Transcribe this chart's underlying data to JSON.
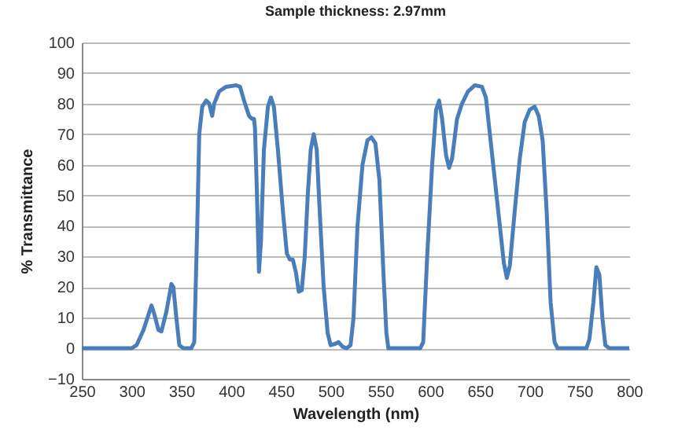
{
  "chart_data": {
    "type": "line",
    "title": "Sample thickness: 2.97mm",
    "xlabel": "Wavelength (nm)",
    "ylabel": "% Transmittance",
    "xlim": [
      250,
      800
    ],
    "xticks": [
      250,
      300,
      350,
      400,
      450,
      500,
      550,
      600,
      650,
      700,
      750,
      800
    ],
    "ylim": [
      -10,
      100
    ],
    "yticks": [
      -10,
      0,
      10,
      20,
      30,
      40,
      50,
      60,
      70,
      80,
      90,
      100
    ],
    "grid": "y",
    "legend": false,
    "marker": "none",
    "line_style": "solid",
    "series": [
      {
        "color": "#4a7ebb",
        "x": [
          250,
          300,
          305,
          312,
          320,
          323,
          327,
          330,
          335,
          340,
          342,
          345,
          348,
          352,
          360,
          363,
          366,
          368,
          371,
          375,
          378,
          381,
          383,
          388,
          395,
          405,
          409,
          413,
          418,
          421,
          423,
          424,
          426,
          428,
          430,
          433,
          437,
          440,
          443,
          447,
          452,
          456,
          459,
          462,
          465,
          468,
          471,
          474,
          477,
          480,
          483,
          486,
          489,
          493,
          497,
          500,
          505,
          508,
          512,
          516,
          520,
          523,
          527,
          532,
          537,
          541,
          545,
          549,
          553,
          556,
          558,
          590,
          593,
          597,
          602,
          606,
          609,
          612,
          616,
          619,
          622,
          627,
          632,
          638,
          645,
          652,
          656,
          660,
          665,
          670,
          674,
          677,
          680,
          685,
          690,
          695,
          700,
          705,
          709,
          713,
          717,
          721,
          725,
          728,
          757,
          760,
          764,
          767,
          770,
          773,
          776,
          780,
          800
        ],
        "values": [
          0,
          0,
          1,
          6,
          14,
          11,
          6,
          5.5,
          12,
          21,
          20,
          10,
          1,
          0,
          0,
          2,
          40,
          70,
          79,
          81,
          80,
          76,
          80,
          84,
          85.5,
          86,
          85.5,
          81,
          76,
          75,
          75,
          72,
          50,
          25,
          35,
          65,
          79,
          82,
          79,
          65,
          45,
          31,
          29,
          29,
          25,
          18.5,
          19,
          30,
          50,
          65,
          70,
          65,
          45,
          20,
          5,
          1,
          1.5,
          2,
          0.5,
          0,
          1,
          10,
          40,
          60,
          68,
          69,
          67,
          55,
          25,
          5,
          0,
          0,
          2,
          30,
          60,
          78,
          81,
          75,
          63,
          59,
          62,
          75,
          80,
          84,
          86,
          85.5,
          82,
          70,
          55,
          40,
          28,
          23,
          27,
          45,
          62,
          74,
          78,
          79,
          76,
          68,
          45,
          15,
          2,
          0,
          0,
          3,
          15,
          26.5,
          24,
          10,
          1,
          0,
          0
        ]
      }
    ]
  }
}
